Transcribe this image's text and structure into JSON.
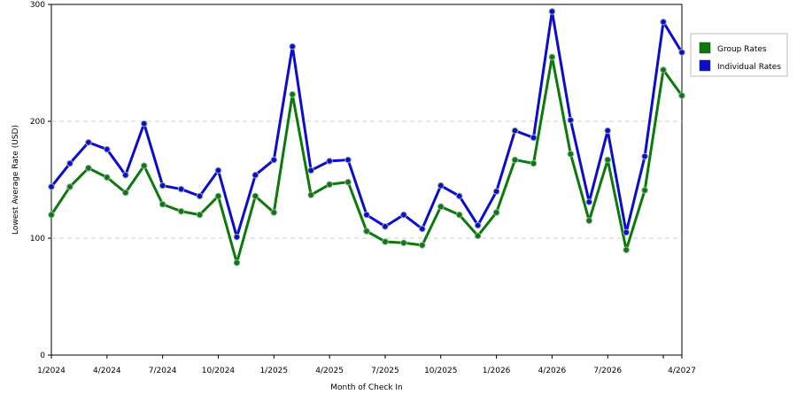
{
  "chart_data": {
    "type": "line",
    "x_label": "Month of Check In",
    "y_label": "Lowest Average Rate (USD)",
    "categories": [
      "1/2024",
      null,
      null,
      "4/2024",
      null,
      null,
      "7/2024",
      null,
      null,
      "10/2024",
      null,
      null,
      "1/2025",
      null,
      null,
      "4/2025",
      null,
      null,
      "7/2025",
      null,
      null,
      "10/2025",
      null,
      null,
      "1/2026",
      null,
      null,
      "4/2026",
      null,
      null,
      "7/2026",
      null,
      null,
      null,
      "4/2027"
    ],
    "series": [
      {
        "name": "Group Rates",
        "color": "#0b7a0b",
        "values": [
          120,
          144,
          160,
          152,
          139,
          162,
          129,
          123,
          120,
          136,
          79,
          136,
          122,
          223,
          137,
          146,
          148,
          106,
          97,
          96,
          94,
          127,
          120,
          102,
          122,
          167,
          164,
          255,
          172,
          115,
          167,
          90,
          141,
          244,
          222
        ]
      },
      {
        "name": "Individual Rates",
        "color": "#0c0ccc",
        "values": [
          144,
          164,
          182,
          176,
          154,
          198,
          145,
          142,
          136,
          158,
          101,
          154,
          167,
          264,
          158,
          166,
          167,
          120,
          110,
          120,
          108,
          145,
          136,
          111,
          140,
          192,
          186,
          294,
          201,
          131,
          192,
          105,
          170,
          285,
          259
        ]
      }
    ],
    "ylim": [
      0,
      300
    ],
    "yticks": [
      0,
      100,
      200,
      300
    ],
    "grid": true,
    "legend": "right"
  }
}
